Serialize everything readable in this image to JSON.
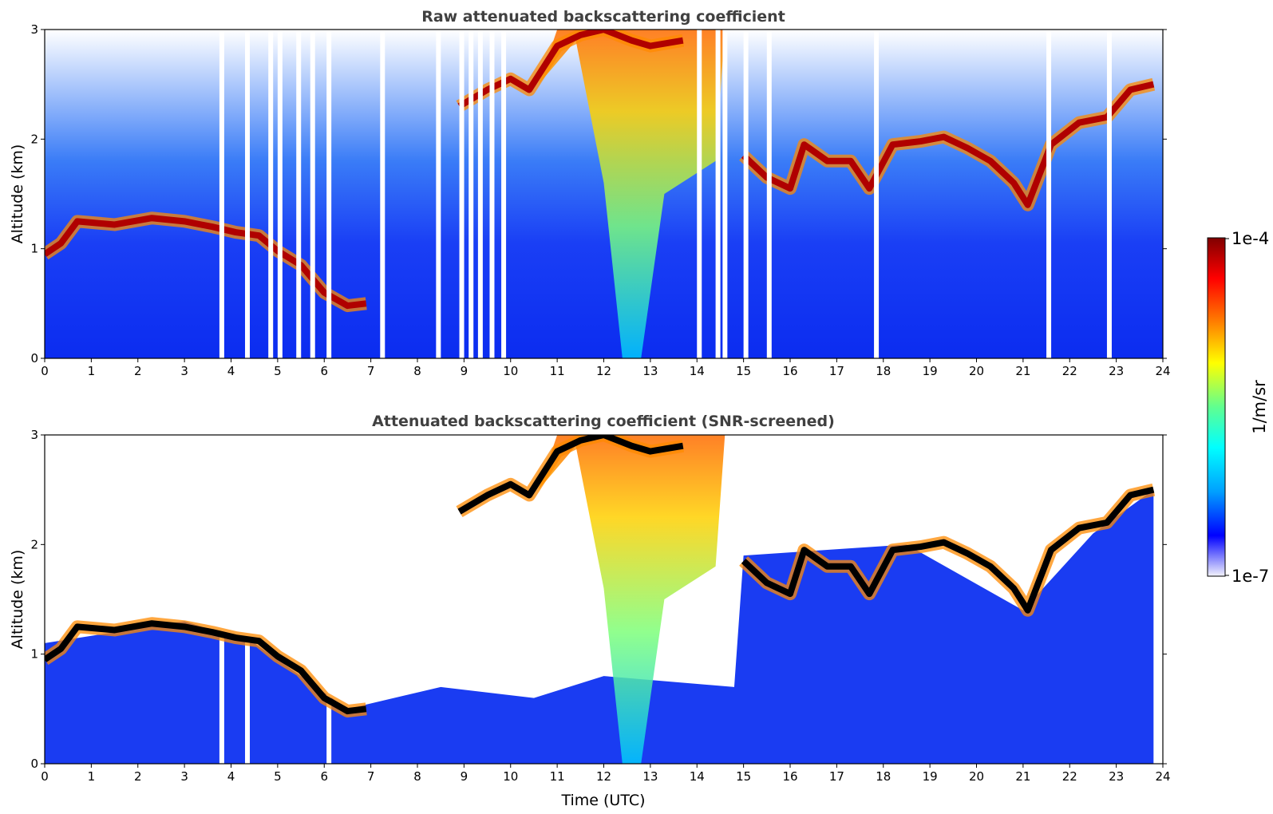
{
  "chart_data": [
    {
      "type": "heatmap",
      "title": "Raw attenuated backscattering coefficient",
      "xlabel": "",
      "ylabel": "Altitude (km)",
      "xlim": [
        0,
        24
      ],
      "ylim": [
        0,
        3
      ],
      "xticks": [
        "0",
        "1",
        "2",
        "3",
        "4",
        "5",
        "6",
        "7",
        "8",
        "9",
        "10",
        "11",
        "12",
        "13",
        "14",
        "15",
        "16",
        "17",
        "18",
        "19",
        "20",
        "21",
        "22",
        "23",
        "24"
      ],
      "yticks": [
        "0",
        "1",
        "2",
        "3"
      ],
      "gaps_x": [
        3.75,
        4.3,
        4.8,
        5.0,
        5.4,
        5.7,
        6.05,
        7.2,
        8.4,
        8.9,
        9.1,
        9.3,
        9.55,
        9.8,
        14.0,
        14.4,
        14.55,
        15.0,
        15.5,
        17.8,
        21.5,
        22.8
      ],
      "layers": [
        {
          "x": [
            0,
            0.35,
            0.7,
            1.5,
            2.3,
            3.0,
            3.6,
            4.1,
            4.6,
            5.0,
            5.5,
            6.0,
            6.5,
            6.9
          ],
          "y": [
            0.95,
            1.05,
            1.25,
            1.22,
            1.28,
            1.25,
            1.2,
            1.15,
            1.12,
            0.98,
            0.85,
            0.6,
            0.48,
            0.5
          ]
        },
        {
          "x": [
            8.9,
            9.5,
            10.0,
            10.4,
            11.0,
            11.5,
            12.0,
            12.6,
            13.0,
            13.7
          ],
          "y": [
            2.3,
            2.45,
            2.55,
            2.45,
            2.85,
            2.95,
            3.0,
            2.9,
            2.85,
            2.9
          ]
        },
        {
          "x": [
            15.0,
            15.5,
            16.0,
            16.3,
            16.8,
            17.3,
            17.7,
            18.2,
            18.8,
            19.3,
            19.8,
            20.3,
            20.8,
            21.1,
            21.6,
            22.2,
            22.8,
            23.3,
            23.8
          ],
          "y": [
            1.85,
            1.65,
            1.55,
            1.95,
            1.8,
            1.8,
            1.55,
            1.95,
            1.98,
            2.02,
            1.92,
            1.8,
            1.6,
            1.4,
            1.95,
            2.15,
            2.2,
            2.45,
            2.5
          ]
        }
      ],
      "colorscale": [
        "#f2f2fb",
        "#0000ff",
        "#00a0ff",
        "#00ffff",
        "#60ff90",
        "#ffff00",
        "#ff8000",
        "#ff0000",
        "#800000"
      ]
    },
    {
      "type": "heatmap",
      "title": "Attenuated backscattering coefficient (SNR-screened)",
      "xlabel": "Time (UTC)",
      "ylabel": "Altitude (km)",
      "xlim": [
        0,
        24
      ],
      "ylim": [
        0,
        3
      ],
      "xticks": [
        "0",
        "1",
        "2",
        "3",
        "4",
        "5",
        "6",
        "7",
        "8",
        "9",
        "10",
        "11",
        "12",
        "13",
        "14",
        "15",
        "16",
        "17",
        "18",
        "19",
        "20",
        "21",
        "22",
        "23",
        "24"
      ],
      "yticks": [
        "0",
        "1",
        "2",
        "3"
      ],
      "note_missing_color": "#000000",
      "layers": [
        {
          "x": [
            0,
            0.35,
            0.7,
            1.5,
            2.3,
            3.0,
            3.6,
            4.1,
            4.6,
            5.0,
            5.5,
            6.0,
            6.5,
            6.9
          ],
          "y": [
            0.95,
            1.05,
            1.25,
            1.22,
            1.28,
            1.25,
            1.2,
            1.15,
            1.12,
            0.98,
            0.85,
            0.6,
            0.48,
            0.5
          ]
        },
        {
          "x": [
            8.9,
            9.5,
            10.0,
            10.4,
            11.0,
            11.5,
            12.0,
            12.6,
            13.0,
            13.7
          ],
          "y": [
            2.3,
            2.45,
            2.55,
            2.45,
            2.85,
            2.95,
            3.0,
            2.9,
            2.85,
            2.9
          ]
        },
        {
          "x": [
            15.0,
            15.5,
            16.0,
            16.3,
            16.8,
            17.3,
            17.7,
            18.2,
            18.8,
            19.3,
            19.8,
            20.3,
            20.8,
            21.1,
            21.6,
            22.2,
            22.8,
            23.3,
            23.8
          ],
          "y": [
            1.85,
            1.65,
            1.55,
            1.95,
            1.8,
            1.8,
            1.55,
            1.95,
            1.98,
            2.02,
            1.92,
            1.8,
            1.6,
            1.4,
            1.95,
            2.15,
            2.2,
            2.45,
            2.5
          ]
        }
      ]
    }
  ],
  "colorbar": {
    "label": "1/m/sr",
    "max_label": "1e-4",
    "min_label": "1e-7",
    "colors": [
      "#800000",
      "#ff0000",
      "#ff8000",
      "#ffff00",
      "#60ff90",
      "#00ffff",
      "#00a0ff",
      "#0000ff",
      "#f2f2fb"
    ]
  }
}
